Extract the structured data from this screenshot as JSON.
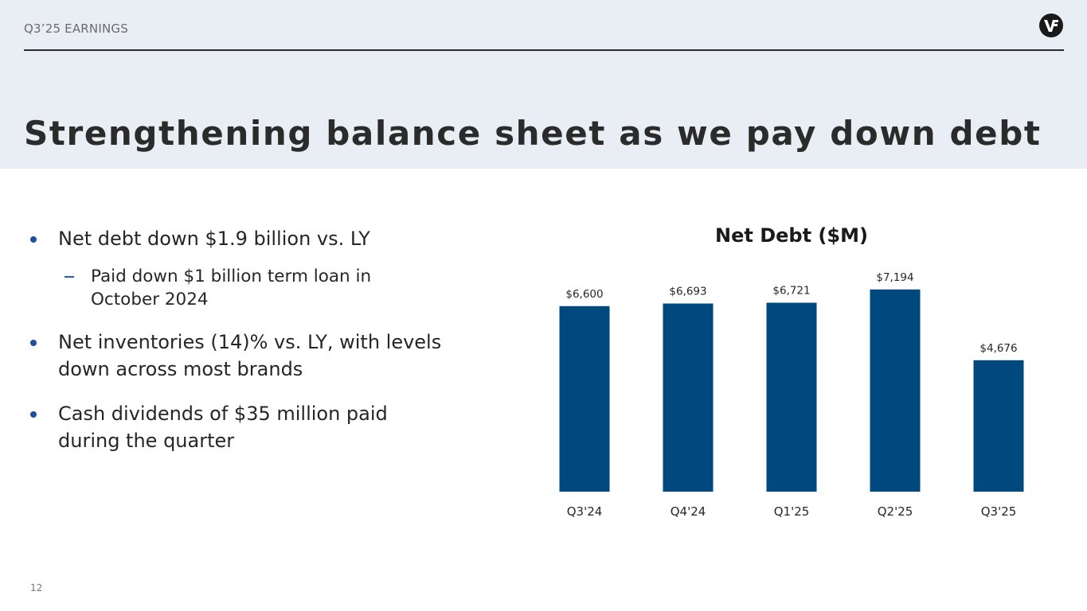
{
  "header": {
    "eyebrow": "Q3’25 EARNINGS",
    "logo_text": "VF",
    "title": "Strengthening balance sheet as we pay down debt"
  },
  "bullets": [
    {
      "text": "Net debt down $1.9 billion vs. LY",
      "sub": "Paid down $1 billion term loan in October 2024"
    },
    {
      "text": "Net inventories (14)% vs. LY, with levels down across most brands"
    },
    {
      "text": "Cash dividends of $35 million paid during the quarter"
    }
  ],
  "page_number": "12",
  "colors": {
    "bar": "#00497e",
    "band": "#e9eef5",
    "bullet": "#1f4e9c"
  },
  "chart_data": {
    "type": "bar",
    "title": "Net Debt ($M)",
    "categories": [
      "Q3'24",
      "Q4'24",
      "Q1'25",
      "Q2'25",
      "Q3'25"
    ],
    "values": [
      6600,
      6693,
      6721,
      7194,
      4676
    ],
    "data_labels": [
      "$6,600",
      "$6,693",
      "$6,721",
      "$7,194",
      "$4,676"
    ],
    "ylim": [
      0,
      9000
    ],
    "grid": false,
    "xlabel": "",
    "ylabel": ""
  }
}
